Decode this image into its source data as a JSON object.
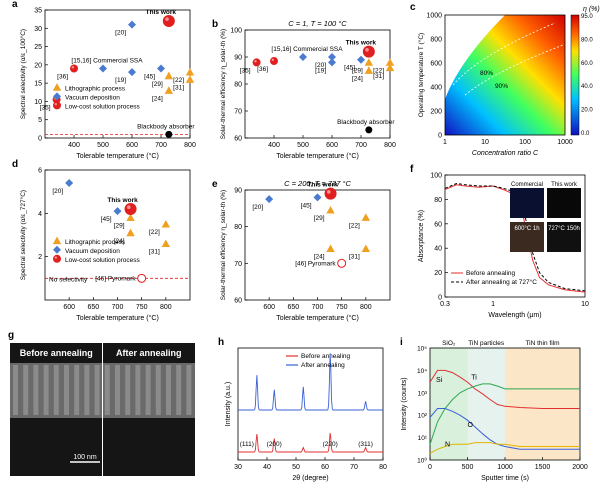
{
  "colors": {
    "litho": "#f0a020",
    "vacuum": "#4a7bd0",
    "solution": "#e02020",
    "bb": "#000000",
    "red": "#e23030",
    "blue": "#3a62d8",
    "green": "#2fa84f",
    "gold": "#e3b400"
  },
  "chart_data": [
    {
      "id": "a",
      "type": "scatter",
      "panel_label": "a",
      "title": "",
      "xlabel": "Tolerable temperature (°C)",
      "ylabel": "Spectral selectivity (α/ε_100°C)",
      "xlim": [
        300,
        800
      ],
      "ylim": [
        0,
        35
      ],
      "xticks": [
        400,
        500,
        600,
        700,
        800
      ],
      "yticks": [
        0,
        5,
        10,
        15,
        20,
        25,
        30,
        35
      ],
      "legend": [
        "Lithographic process",
        "Vacuum deposition",
        "Low-cost solution process",
        "Blackbody absorber"
      ],
      "points": [
        {
          "x": 340,
          "y": 10.5,
          "cls": "solution",
          "label": "[35]"
        },
        {
          "x": 400,
          "y": 19,
          "cls": "solution",
          "label": "[36]"
        },
        {
          "x": 500,
          "y": 19,
          "cls": "vacuum",
          "label": "[15,16] Commercial SSA"
        },
        {
          "x": 600,
          "y": 31,
          "cls": "vacuum",
          "label": "[20]"
        },
        {
          "x": 600,
          "y": 18,
          "cls": "vacuum",
          "label": "[19]"
        },
        {
          "x": 700,
          "y": 19,
          "cls": "vacuum",
          "label": "[45]"
        },
        {
          "x": 727,
          "y": 17,
          "cls": "litho",
          "label": "[29]"
        },
        {
          "x": 727,
          "y": 13,
          "cls": "litho",
          "label": "[24]"
        },
        {
          "x": 800,
          "y": 18,
          "cls": "litho",
          "label": "[22]"
        },
        {
          "x": 800,
          "y": 16,
          "cls": "litho",
          "label": "[31]"
        },
        {
          "x": 727,
          "y": 32,
          "cls": "solution",
          "label": "This work",
          "big": true
        },
        {
          "x": 727,
          "y": 1,
          "cls": "bb",
          "label": "Blackbody absorber"
        }
      ]
    },
    {
      "id": "b",
      "type": "scatter",
      "panel_label": "b",
      "title": "C = 1, T = 100 °C",
      "xlabel": "Tolerable temperature (°C)",
      "ylabel": "Solar-thermal efficiency η_solar-th (%)",
      "xlim": [
        300,
        800
      ],
      "ylim": [
        60,
        100
      ],
      "xticks": [
        400,
        500,
        600,
        700,
        800
      ],
      "yticks": [
        60,
        70,
        80,
        90,
        100
      ],
      "points": [
        {
          "x": 340,
          "y": 88,
          "cls": "solution",
          "label": "[35]"
        },
        {
          "x": 400,
          "y": 88.5,
          "cls": "solution",
          "label": "[36]"
        },
        {
          "x": 500,
          "y": 90,
          "cls": "vacuum",
          "label": "[15,16] Commercial SSA"
        },
        {
          "x": 600,
          "y": 90,
          "cls": "vacuum",
          "label": "[20]"
        },
        {
          "x": 600,
          "y": 88,
          "cls": "vacuum",
          "label": "[19]"
        },
        {
          "x": 700,
          "y": 89,
          "cls": "vacuum",
          "label": "[45]"
        },
        {
          "x": 727,
          "y": 88,
          "cls": "litho",
          "label": "[29]"
        },
        {
          "x": 727,
          "y": 85,
          "cls": "litho",
          "label": "[24]"
        },
        {
          "x": 800,
          "y": 88,
          "cls": "litho",
          "label": "[22]"
        },
        {
          "x": 800,
          "y": 86,
          "cls": "litho",
          "label": "[31]"
        },
        {
          "x": 727,
          "y": 92,
          "cls": "solution",
          "label": "This work",
          "big": true
        },
        {
          "x": 727,
          "y": 63,
          "cls": "bb",
          "label": "Blackbody absorber"
        }
      ]
    },
    {
      "id": "c",
      "type": "heatmap",
      "panel_label": "c",
      "title": "",
      "xlabel": "Concentration ratio C",
      "ylabel": "Operating temperature T (°C)",
      "xscale": "log",
      "xlim": [
        1,
        1000
      ],
      "ylim": [
        0,
        1000
      ],
      "xtick_labels": [
        "1",
        "10",
        "100",
        "1000"
      ],
      "yticks": [
        0,
        200,
        400,
        600,
        800,
        1000
      ],
      "colorbar_label": "η (%)",
      "colorbar_ticks": [
        "95.0",
        "80.0",
        "60.0",
        "40.0",
        "20.0",
        "0.0"
      ],
      "contours": [
        "80%",
        "90%"
      ]
    },
    {
      "id": "d",
      "type": "scatter",
      "panel_label": "d",
      "title": "",
      "xlabel": "Tolerable temperature (°C)",
      "ylabel": "Spectral selectivity (α/ε_727°C)",
      "xlim": [
        550,
        850
      ],
      "ylim": [
        0,
        6
      ],
      "xticks": [
        600,
        650,
        700,
        750,
        800
      ],
      "yticks": [
        2,
        4,
        6
      ],
      "legend": [
        "Lithographic process",
        "Vacuum deposition",
        "Low-cost solution process"
      ],
      "points": [
        {
          "x": 600,
          "y": 5.4,
          "cls": "vacuum",
          "label": "[20]"
        },
        {
          "x": 700,
          "y": 4.1,
          "cls": "vacuum",
          "label": "[45]"
        },
        {
          "x": 727,
          "y": 3.8,
          "cls": "litho",
          "label": "[29]"
        },
        {
          "x": 727,
          "y": 3.1,
          "cls": "litho",
          "label": "[24]"
        },
        {
          "x": 800,
          "y": 3.5,
          "cls": "litho",
          "label": "[22]"
        },
        {
          "x": 800,
          "y": 2.6,
          "cls": "litho",
          "label": "[31]"
        },
        {
          "x": 727,
          "y": 4.2,
          "cls": "solution",
          "label": "This work",
          "big": true
        },
        {
          "x": 750,
          "y": 1,
          "cls": "open",
          "label": "[46] Pyromark"
        }
      ],
      "hline": {
        "y": 1,
        "label": "No selectivity"
      }
    },
    {
      "id": "e",
      "type": "scatter",
      "panel_label": "e",
      "title": "C = 200, T = 727 °C",
      "xlabel": "Tolerable temperature (°C)",
      "ylabel": "Solar-thermal efficiency η_solar-th (%)",
      "xlim": [
        550,
        850
      ],
      "ylim": [
        60,
        90
      ],
      "xticks": [
        600,
        650,
        700,
        750,
        800
      ],
      "yticks": [
        60,
        70,
        80,
        90
      ],
      "points": [
        {
          "x": 600,
          "y": 87.5,
          "cls": "vacuum",
          "label": "[20]"
        },
        {
          "x": 700,
          "y": 88,
          "cls": "vacuum",
          "label": "[45]"
        },
        {
          "x": 727,
          "y": 84.5,
          "cls": "litho",
          "label": "[29]"
        },
        {
          "x": 800,
          "y": 82.5,
          "cls": "litho",
          "label": "[22]"
        },
        {
          "x": 727,
          "y": 74,
          "cls": "litho",
          "label": "[24]"
        },
        {
          "x": 800,
          "y": 74,
          "cls": "litho",
          "label": "[31]"
        },
        {
          "x": 727,
          "y": 89,
          "cls": "solution",
          "label": "This work",
          "big": true
        },
        {
          "x": 750,
          "y": 70,
          "cls": "open",
          "label": "[46] Pyromark"
        }
      ]
    },
    {
      "id": "f",
      "type": "line",
      "panel_label": "f",
      "title": "",
      "xlabel": "Wavelength (μm)",
      "ylabel": "Absorptance (%)",
      "xscale": "log",
      "xlim": [
        0.3,
        10
      ],
      "ylim": [
        0,
        100
      ],
      "xtick_labels": [
        "0.3",
        "1",
        "10"
      ],
      "yticks": [
        0,
        20,
        40,
        60,
        80,
        100
      ],
      "series": [
        {
          "name": "Before annealing",
          "style": "solid",
          "x": [
            0.3,
            0.4,
            0.5,
            0.7,
            1.0,
            1.3,
            1.6,
            2.0,
            2.3,
            2.7,
            3.2,
            4,
            6,
            10
          ],
          "y": [
            88,
            92,
            91,
            90,
            91,
            88,
            85,
            75,
            55,
            30,
            16,
            10,
            6,
            4
          ]
        },
        {
          "name": "After annealing at 727°C",
          "style": "dashed",
          "x": [
            0.3,
            0.4,
            0.5,
            0.7,
            1.0,
            1.3,
            1.6,
            2.0,
            2.3,
            2.7,
            3.2,
            4,
            6,
            10
          ],
          "y": [
            89,
            93,
            92,
            91,
            91,
            89,
            87,
            80,
            62,
            36,
            20,
            12,
            7,
            5
          ]
        }
      ],
      "inset": {
        "labels": [
          "Commercial",
          "This work",
          "600°C 1h",
          "727°C 150h"
        ]
      }
    },
    {
      "id": "g",
      "type": "image",
      "panel_label": "g",
      "labels": [
        "Before annealing",
        "After annealing"
      ],
      "scalebar": "100 nm"
    },
    {
      "id": "h",
      "type": "line",
      "panel_label": "h",
      "title": "",
      "xlabel": "2θ (degree)",
      "ylabel": "Intensity (a.u.)",
      "xlim": [
        30,
        80
      ],
      "xticks": [
        30,
        40,
        50,
        60,
        70,
        80
      ],
      "series": [
        {
          "name": "Before annealing",
          "peaks": [
            [
              36.5,
              0.6
            ],
            [
              42.5,
              0.45
            ],
            [
              52.5,
              0.15
            ],
            [
              61.8,
              0.65
            ],
            [
              74,
              0.15
            ]
          ]
        },
        {
          "name": "After annealing",
          "peaks": [
            [
              36.5,
              0.6
            ],
            [
              42.5,
              0.35
            ],
            [
              52.5,
              0.4
            ],
            [
              61.8,
              1.0
            ],
            [
              74,
              0.15
            ]
          ]
        }
      ],
      "annotations": [
        "(111)",
        "(200)",
        "(220)",
        "(311)"
      ]
    },
    {
      "id": "i",
      "type": "line",
      "panel_label": "i",
      "title": "",
      "xlabel": "Sputter time (s)",
      "ylabel": "Intensity (counts)",
      "yscale": "log",
      "xlim": [
        0,
        2000
      ],
      "ylim": [
        1,
        100000
      ],
      "xticks": [
        0,
        500,
        1000,
        1500,
        2000
      ],
      "ytick_labels": [
        "10⁰",
        "10¹",
        "10²",
        "10³",
        "10⁴",
        "10⁵"
      ],
      "regions": [
        "SiO₂",
        "TiN particles",
        "TiN thin film"
      ],
      "series": [
        {
          "name": "Si",
          "x": [
            0,
            100,
            200,
            300,
            400,
            500,
            600,
            700,
            800,
            900,
            1000,
            1200,
            1500,
            2000
          ],
          "y": [
            3000,
            10000,
            10000,
            8000,
            5000,
            3000,
            1500,
            900,
            500,
            300,
            250,
            220,
            200,
            200
          ]
        },
        {
          "name": "Ti",
          "x": [
            0,
            100,
            200,
            300,
            400,
            500,
            600,
            700,
            800,
            900,
            1000,
            1200,
            1500,
            2000
          ],
          "y": [
            5,
            50,
            200,
            500,
            1000,
            1500,
            2000,
            2500,
            2500,
            2000,
            1500,
            1500,
            1500,
            1500
          ]
        },
        {
          "name": "O",
          "x": [
            0,
            100,
            200,
            300,
            400,
            500,
            600,
            700,
            800,
            900,
            1000,
            1200,
            1500,
            2000
          ],
          "y": [
            80,
            200,
            200,
            150,
            100,
            60,
            30,
            15,
            8,
            5,
            4,
            3,
            3,
            3
          ]
        },
        {
          "name": "N",
          "x": [
            0,
            100,
            200,
            300,
            400,
            500,
            600,
            700,
            800,
            900,
            1000,
            1200,
            1500,
            2000
          ],
          "y": [
            2,
            3,
            4,
            5,
            5,
            5,
            6,
            6,
            6,
            5,
            5,
            4,
            4,
            4
          ]
        }
      ]
    }
  ]
}
